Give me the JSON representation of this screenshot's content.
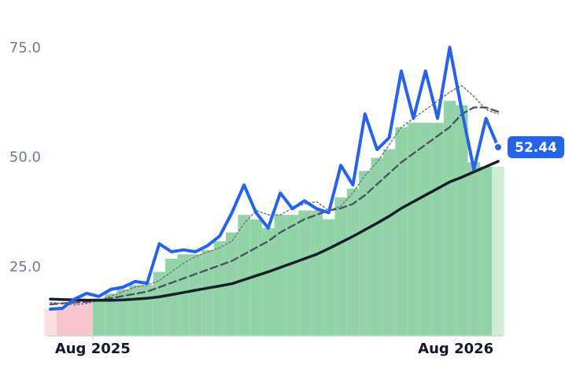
{
  "chart_data": {
    "type": "line",
    "x": [
      -1.4,
      -1.0,
      -0.6,
      -0.2,
      0.2,
      0.6,
      1.0,
      1.4,
      1.8,
      2.2,
      2.6,
      3.0,
      3.4,
      3.8,
      4.2,
      4.6,
      5.0,
      5.4,
      5.8,
      6.2,
      6.6,
      7.0,
      7.4,
      7.8,
      8.2,
      8.6,
      9.0,
      9.4,
      9.8,
      10.2,
      10.6,
      11.0,
      11.4,
      11.8,
      12.2,
      12.6,
      13.0,
      13.4
    ],
    "series": [
      {
        "style": "bar",
        "color": "#93d3a8",
        "colors": [
          "#fbe0e4",
          "#f8c6ce",
          "#f8c6ce",
          "#f8c6ce",
          "#93d3a8",
          "#93d3a8",
          "#93d3a8",
          "#93d3a8",
          "#93d3a8",
          "#93d3a8",
          "#93d3a8",
          "#93d3a8",
          "#93d3a8",
          "#93d3a8",
          "#93d3a8",
          "#93d3a8",
          "#93d3a8",
          "#93d3a8",
          "#93d3a8",
          "#93d3a8",
          "#93d3a8",
          "#93d3a8",
          "#93d3a8",
          "#93d3a8",
          "#93d3a8",
          "#93d3a8",
          "#93d3a8",
          "#93d3a8",
          "#93d3a8",
          "#93d3a8",
          "#93d3a8",
          "#93d3a8",
          "#93d3a8",
          "#93d3a8",
          "#93d3a8",
          "#93d3a8",
          "#93d3a8",
          "#d3ecd9"
        ],
        "values": [
          15.5,
          16,
          17,
          18,
          18,
          19,
          20,
          21,
          21,
          24,
          27,
          28,
          28,
          29,
          31,
          33,
          37,
          36,
          34,
          37,
          37,
          38,
          38,
          36,
          41,
          43,
          47,
          50,
          52,
          57,
          58,
          58,
          58,
          63,
          62,
          49,
          48,
          48
        ]
      },
      {
        "style": "line",
        "color": "#7a7f87",
        "width": 1.6,
        "dash": "2 3",
        "values": [
          17,
          16.8,
          16.5,
          16.8,
          17.5,
          18.5,
          19.5,
          20.5,
          21,
          22,
          24,
          26,
          27.5,
          28.5,
          29.5,
          31,
          35,
          38,
          37,
          37,
          38.5,
          39.5,
          40,
          38,
          39,
          42,
          46,
          49,
          53,
          57,
          59,
          61,
          63,
          65,
          66.5,
          64,
          61,
          60
        ]
      },
      {
        "style": "line",
        "color": "#4b5563",
        "width": 2.4,
        "dash": "9 5",
        "values": [
          16.6,
          16.8,
          17,
          17.2,
          17.5,
          18,
          18.5,
          19,
          19.5,
          20.5,
          21.5,
          22.5,
          23.5,
          24.5,
          25.5,
          26.5,
          28,
          29.5,
          31,
          33,
          34.5,
          36,
          37,
          38,
          38.5,
          39.5,
          41.5,
          44,
          46.5,
          49,
          51,
          53,
          55,
          57,
          60,
          61.5,
          61.5,
          60.5
        ]
      },
      {
        "style": "line",
        "color": "#1a1f2e",
        "width": 3.5,
        "values": [
          17.8,
          17.7,
          17.6,
          17.5,
          17.5,
          17.5,
          17.6,
          17.8,
          18,
          18.3,
          18.8,
          19.3,
          19.8,
          20.3,
          20.8,
          21.3,
          22.2,
          23.1,
          24,
          25,
          26,
          27,
          28,
          29.3,
          30.7,
          32.1,
          33.6,
          35.1,
          36.7,
          38.5,
          40,
          41.5,
          43,
          44.5,
          45.6,
          46.8,
          48,
          49.2
        ]
      },
      {
        "style": "line",
        "color": "#2563eb",
        "width": 4,
        "last_label": true,
        "values": [
          15.5,
          15.7,
          17.8,
          19.1,
          18.4,
          20,
          20.5,
          21.8,
          21.4,
          30.4,
          28.6,
          29,
          28.6,
          30,
          32.2,
          37.5,
          43.8,
          37.5,
          34,
          42,
          38.4,
          40.2,
          38.4,
          37.5,
          48.3,
          43.8,
          60,
          51.9,
          54.6,
          69.8,
          59,
          69.8,
          59,
          75.2,
          60.8,
          47.4,
          59,
          52.44
        ]
      }
    ],
    "xlim": [
      -1.4,
      13.4
    ],
    "xticks": [
      {
        "value": 0,
        "label": "Aug 2025"
      },
      {
        "value": 12,
        "label": "Aug 2026"
      }
    ],
    "ylim": [
      9.4,
      86
    ],
    "yticks": [
      {
        "value": 25,
        "label": "25.0"
      },
      {
        "value": 50,
        "label": "50.0"
      },
      {
        "value": 75,
        "label": "75.0"
      }
    ]
  }
}
